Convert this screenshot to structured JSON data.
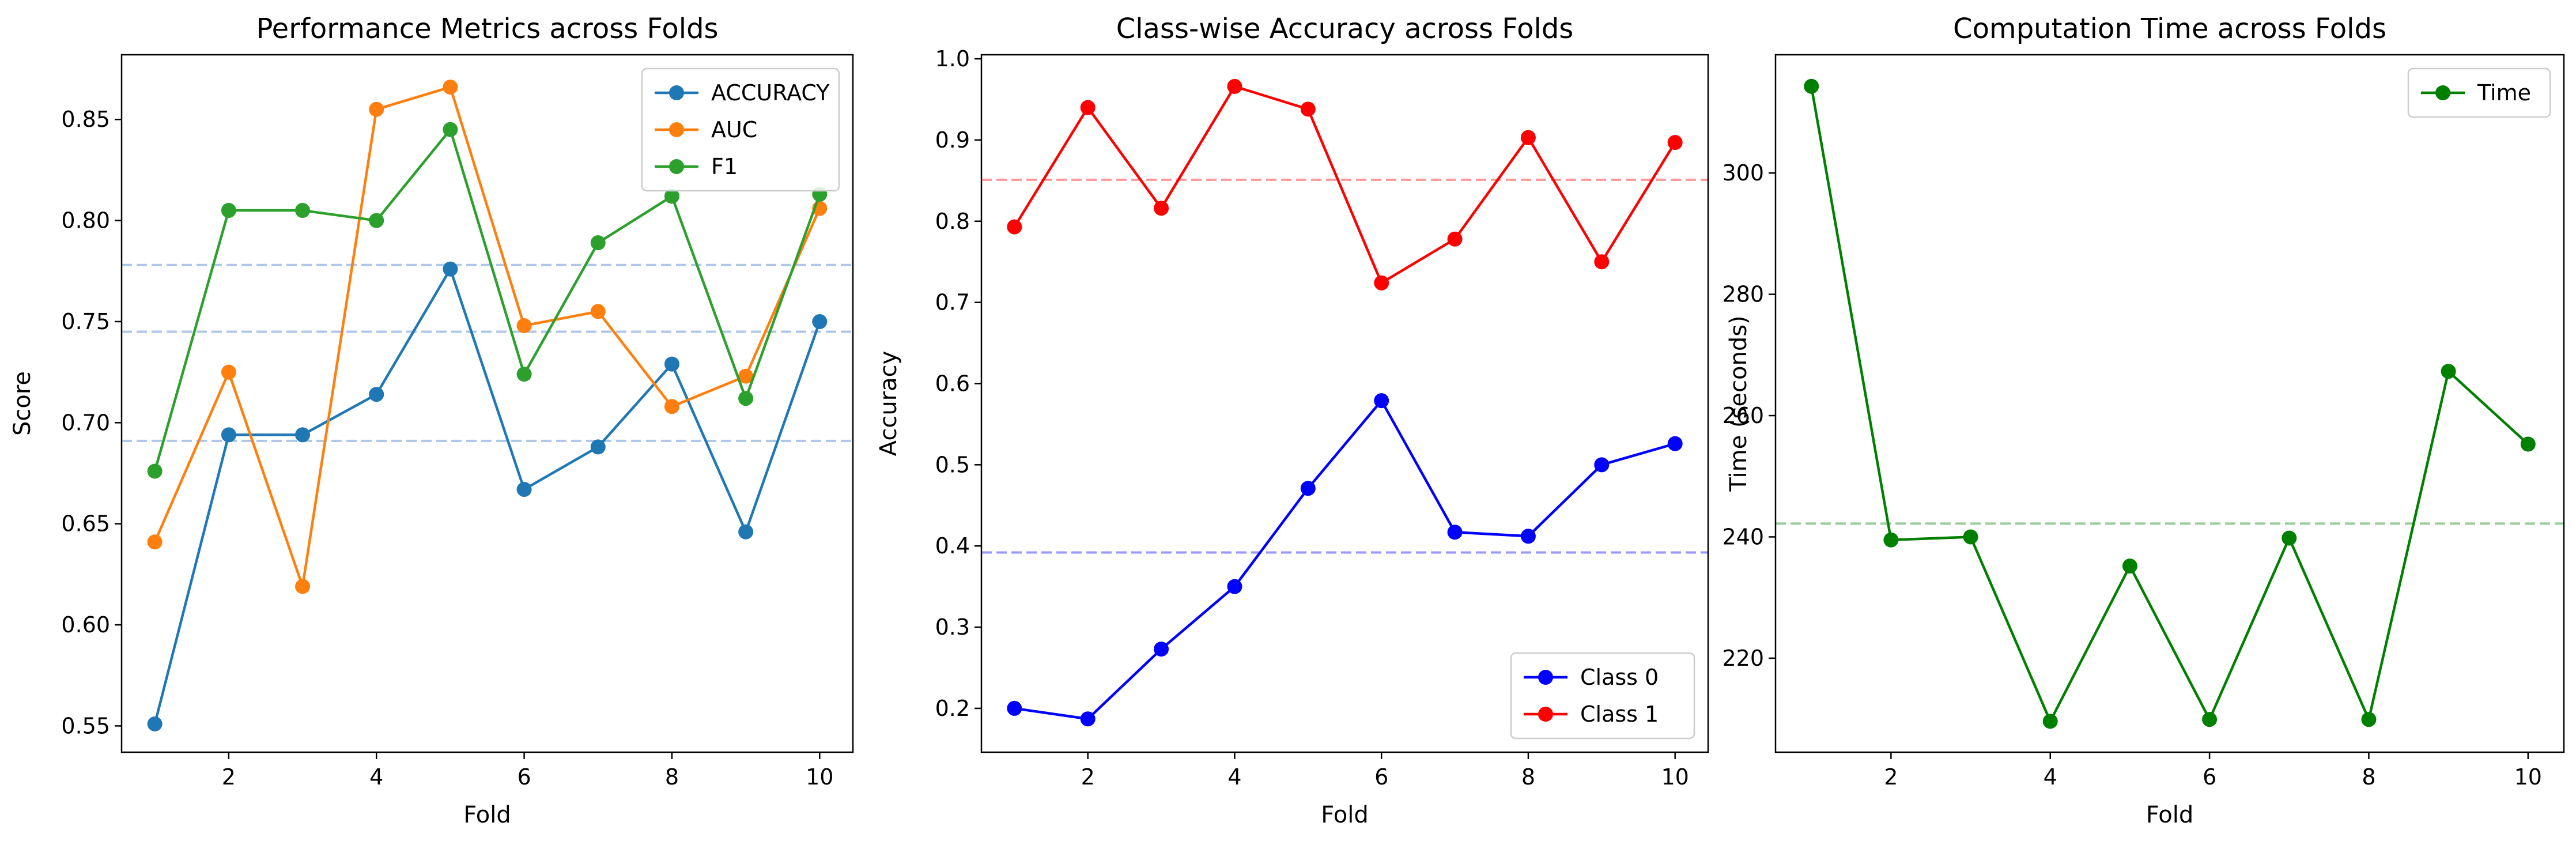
{
  "chart_data": [
    {
      "type": "line",
      "title": "Performance Metrics across Folds",
      "xlabel": "Fold",
      "ylabel": "Score",
      "xlim": [
        0.55,
        10.45
      ],
      "ylim": [
        0.537,
        0.882
      ],
      "xticks": [
        2,
        4,
        6,
        8,
        10
      ],
      "yticks": [
        0.55,
        0.6,
        0.65,
        0.7,
        0.75,
        0.8,
        0.85
      ],
      "ytick_labels": [
        "0.55",
        "0.60",
        "0.65",
        "0.70",
        "0.75",
        "0.80",
        "0.85"
      ],
      "grid": false,
      "legend": "top-right",
      "x": [
        1,
        2,
        3,
        4,
        5,
        6,
        7,
        8,
        9,
        10
      ],
      "series": [
        {
          "name": "ACCURACY",
          "color": "#1f77b4",
          "values": [
            0.551,
            0.694,
            0.694,
            0.714,
            0.776,
            0.667,
            0.688,
            0.729,
            0.646,
            0.75
          ]
        },
        {
          "name": "AUC",
          "color": "#ff7f0e",
          "values": [
            0.641,
            0.725,
            0.619,
            0.855,
            0.866,
            0.748,
            0.755,
            0.708,
            0.723,
            0.806
          ]
        },
        {
          "name": "F1",
          "color": "#2ca02c",
          "values": [
            0.676,
            0.805,
            0.805,
            0.8,
            0.845,
            0.724,
            0.789,
            0.812,
            0.712,
            0.813
          ]
        }
      ],
      "hlines": [
        {
          "y": 0.778,
          "color": "#aec7e8"
        },
        {
          "y": 0.745,
          "color": "#aec7e8"
        },
        {
          "y": 0.691,
          "color": "#aec7e8"
        }
      ]
    },
    {
      "type": "line",
      "title": "Class-wise Accuracy across Folds",
      "xlabel": "Fold",
      "ylabel": "Accuracy",
      "xlim": [
        0.55,
        10.45
      ],
      "ylim": [
        0.146,
        1.005
      ],
      "xticks": [
        2,
        4,
        6,
        8,
        10
      ],
      "yticks": [
        0.2,
        0.3,
        0.4,
        0.5,
        0.6,
        0.7,
        0.8,
        0.9,
        1.0
      ],
      "ytick_labels": [
        "0.2",
        "0.3",
        "0.4",
        "0.5",
        "0.6",
        "0.7",
        "0.8",
        "0.9",
        "1.0"
      ],
      "grid": false,
      "legend": "bottom-right",
      "x": [
        1,
        2,
        3,
        4,
        5,
        6,
        7,
        8,
        9,
        10
      ],
      "series": [
        {
          "name": "Class 0",
          "color": "#0000ff",
          "values": [
            0.2,
            0.187,
            0.273,
            0.35,
            0.471,
            0.579,
            0.417,
            0.412,
            0.5,
            0.526
          ]
        },
        {
          "name": "Class 1",
          "color": "#ff0000",
          "values": [
            0.793,
            0.94,
            0.816,
            0.966,
            0.938,
            0.724,
            0.778,
            0.903,
            0.75,
            0.897
          ]
        }
      ],
      "hlines": [
        {
          "y": 0.392,
          "color": "#9999ff"
        },
        {
          "y": 0.851,
          "color": "#ff9999"
        }
      ]
    },
    {
      "type": "line",
      "title": "Computation Time across Folds",
      "xlabel": "Fold",
      "ylabel": "Time (seconds)",
      "xlim": [
        0.55,
        10.45
      ],
      "ylim": [
        204.5,
        319.5
      ],
      "xticks": [
        2,
        4,
        6,
        8,
        10
      ],
      "yticks": [
        220,
        240,
        260,
        280,
        300
      ],
      "ytick_labels": [
        "220",
        "240",
        "260",
        "280",
        "300"
      ],
      "grid": false,
      "legend": "top-right",
      "x": [
        1,
        2,
        3,
        4,
        5,
        6,
        7,
        8,
        9,
        10
      ],
      "series": [
        {
          "name": "Time",
          "color": "#008000",
          "values": [
            314.3,
            239.5,
            240.0,
            209.6,
            235.2,
            209.9,
            239.8,
            209.9,
            267.3,
            255.3
          ]
        }
      ],
      "hlines": [
        {
          "y": 242.2,
          "color": "#99cc99"
        }
      ]
    }
  ]
}
